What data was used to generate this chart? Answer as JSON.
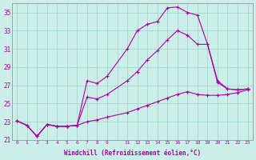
{
  "xlabel": "Windchill (Refroidissement éolien,°C)",
  "ylabel": "",
  "bg_color": "#cceee8",
  "grid_color": "#aad8d0",
  "line_color": "#aa00aa",
  "xlim": [
    -0.5,
    23.5
  ],
  "ylim": [
    21,
    36
  ],
  "yticks": [
    21,
    23,
    25,
    27,
    29,
    31,
    33,
    35
  ],
  "xticks": [
    0,
    1,
    2,
    3,
    4,
    5,
    6,
    7,
    8,
    9,
    11,
    12,
    13,
    14,
    15,
    16,
    17,
    18,
    19,
    20,
    21,
    22,
    23
  ],
  "curve1_x": [
    0,
    1,
    2,
    3,
    4,
    5,
    6,
    7,
    8,
    9,
    11,
    12,
    13,
    14,
    15,
    16,
    17,
    18,
    19,
    20,
    21,
    22,
    23
  ],
  "curve1_y": [
    23.1,
    22.6,
    21.4,
    22.7,
    22.5,
    22.5,
    22.6,
    27.5,
    27.2,
    28.0,
    31.0,
    33.0,
    33.7,
    34.0,
    35.5,
    35.6,
    35.0,
    34.7,
    31.5,
    27.3,
    26.6,
    26.5,
    26.6
  ],
  "curve2_x": [
    0,
    1,
    2,
    3,
    4,
    5,
    6,
    7,
    8,
    9,
    11,
    12,
    13,
    14,
    15,
    16,
    17,
    18,
    19,
    20,
    21,
    22,
    23
  ],
  "curve2_y": [
    23.1,
    22.6,
    21.4,
    22.7,
    22.5,
    22.5,
    22.6,
    25.7,
    25.5,
    26.0,
    27.5,
    28.5,
    29.8,
    30.8,
    32.0,
    33.0,
    32.5,
    31.5,
    31.5,
    27.5,
    26.6,
    26.5,
    26.6
  ],
  "curve3_x": [
    0,
    1,
    2,
    3,
    4,
    5,
    6,
    7,
    8,
    9,
    11,
    12,
    13,
    14,
    15,
    16,
    17,
    18,
    19,
    20,
    21,
    22,
    23
  ],
  "curve3_y": [
    23.1,
    22.6,
    21.4,
    22.7,
    22.5,
    22.5,
    22.6,
    23.0,
    23.2,
    23.5,
    24.0,
    24.4,
    24.8,
    25.2,
    25.6,
    26.0,
    26.3,
    26.0,
    25.9,
    25.9,
    26.0,
    26.2,
    26.5
  ]
}
